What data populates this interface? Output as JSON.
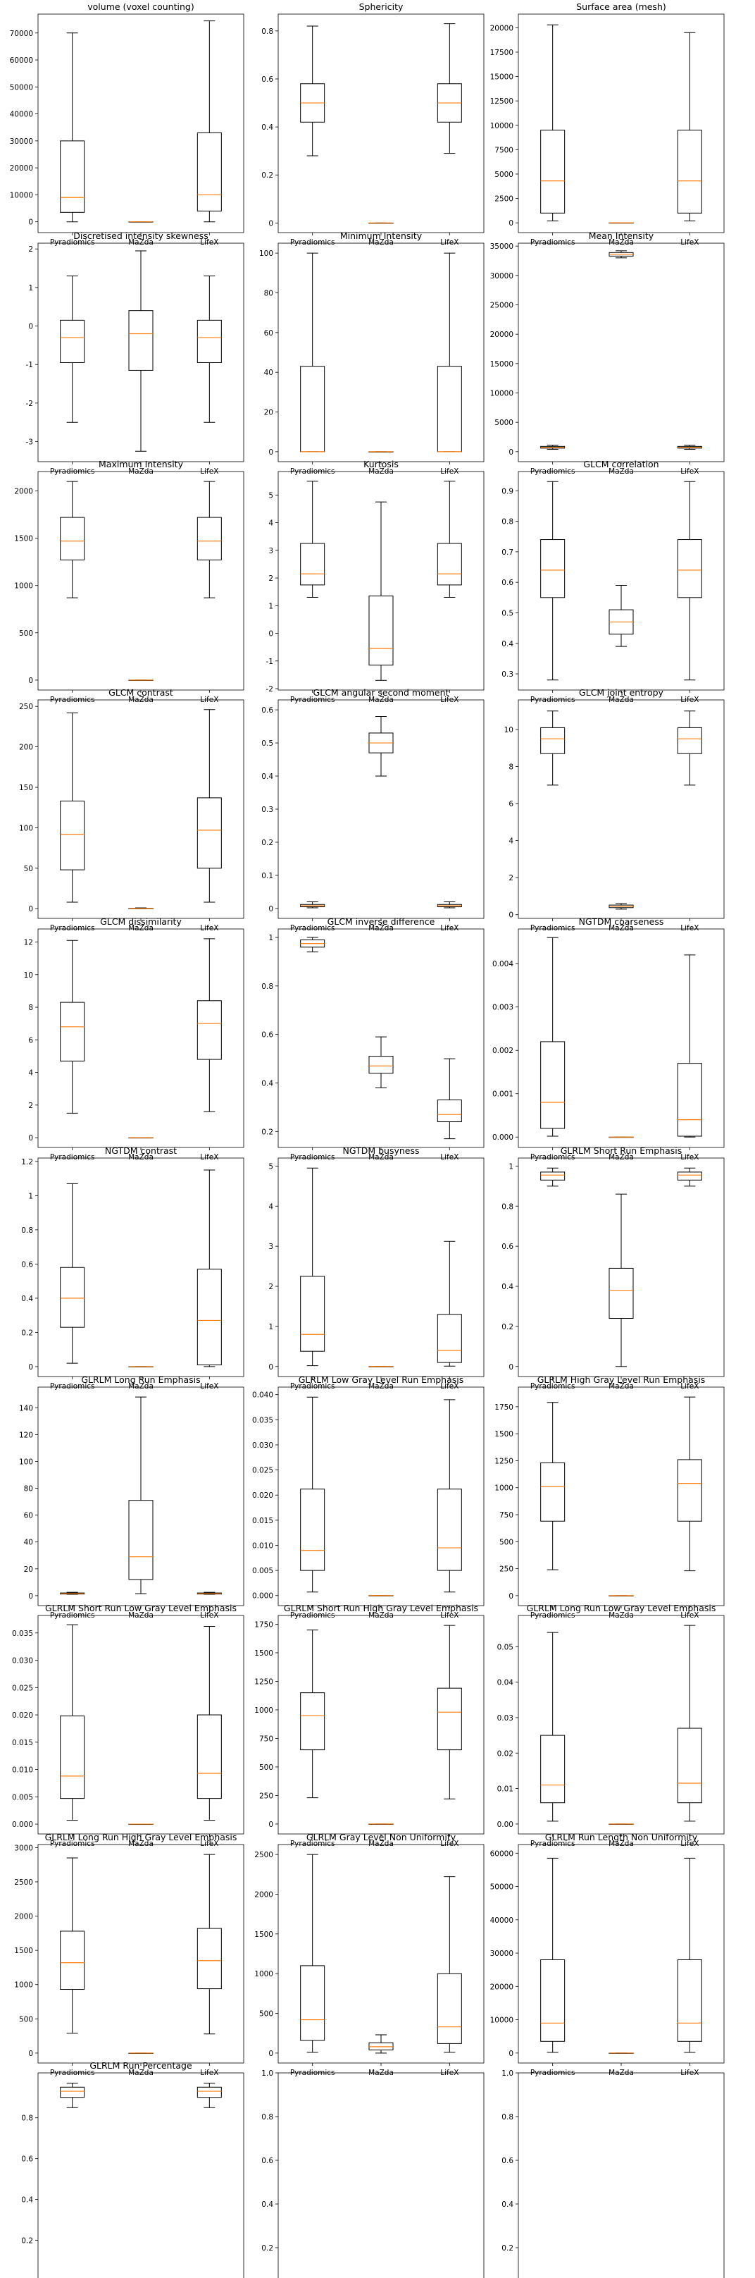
{
  "figure": {
    "categories": [
      "Pyradiomics",
      "MaZda",
      "LifeX"
    ],
    "box_color": "#000000",
    "median_color": "#ff7f0e"
  },
  "chart_data": [
    {
      "type": "box",
      "title": "volume (voxel counting)",
      "ylim": [
        -4000,
        77000
      ],
      "yticks": [
        0,
        10000,
        20000,
        30000,
        40000,
        50000,
        60000,
        70000
      ],
      "boxes": [
        {
          "whislo": 0,
          "q1": 3500,
          "med": 9000,
          "q3": 30000,
          "whishi": 70000
        },
        {
          "whislo": 0,
          "q1": 0,
          "med": 0,
          "q3": 0,
          "whishi": 0
        },
        {
          "whislo": 0,
          "q1": 4000,
          "med": 10000,
          "q3": 33000,
          "whishi": 74500
        }
      ]
    },
    {
      "type": "box",
      "title": "Sphericity",
      "ylim": [
        -0.04,
        0.87
      ],
      "yticks": [
        0.0,
        0.2,
        0.4,
        0.6,
        0.8
      ],
      "boxes": [
        {
          "whislo": 0.28,
          "q1": 0.42,
          "med": 0.5,
          "q3": 0.58,
          "whishi": 0.82
        },
        {
          "whislo": 0,
          "q1": 0,
          "med": 0,
          "q3": 0,
          "whishi": 0
        },
        {
          "whislo": 0.29,
          "q1": 0.42,
          "med": 0.5,
          "q3": 0.58,
          "whishi": 0.83
        }
      ]
    },
    {
      "type": "box",
      "title": "Surface area (mesh)",
      "ylim": [
        -1000,
        21400
      ],
      "yticks": [
        0,
        2500,
        5000,
        7500,
        10000,
        12500,
        15000,
        17500,
        20000
      ],
      "boxes": [
        {
          "whislo": 200,
          "q1": 1000,
          "med": 4300,
          "q3": 9500,
          "whishi": 20300
        },
        {
          "whislo": 0,
          "q1": 0,
          "med": 0,
          "q3": 0,
          "whishi": 0
        },
        {
          "whislo": 200,
          "q1": 1000,
          "med": 4300,
          "q3": 9500,
          "whishi": 19500
        }
      ]
    },
    {
      "type": "box",
      "title": "Discretised intensity skewness",
      "ylim": [
        -3.52,
        2.15
      ],
      "yticks": [
        -3,
        -2,
        -1,
        0,
        1,
        2
      ],
      "boxes": [
        {
          "whislo": -2.5,
          "q1": -0.95,
          "med": -0.3,
          "q3": 0.15,
          "whishi": 1.3
        },
        {
          "whislo": -3.25,
          "q1": -1.15,
          "med": -0.2,
          "q3": 0.4,
          "whishi": 1.95
        },
        {
          "whislo": -2.5,
          "q1": -0.95,
          "med": -0.3,
          "q3": 0.15,
          "whishi": 1.3
        }
      ]
    },
    {
      "type": "box",
      "title": "Minimum Intensity",
      "ylim": [
        -5,
        105
      ],
      "yticks": [
        0,
        20,
        40,
        60,
        80,
        100
      ],
      "boxes": [
        {
          "whislo": 0,
          "q1": 0,
          "med": 0,
          "q3": 43,
          "whishi": 100
        },
        {
          "whislo": 0,
          "q1": 0,
          "med": 0,
          "q3": 0,
          "whishi": 0
        },
        {
          "whislo": 0,
          "q1": 0,
          "med": 0,
          "q3": 43,
          "whishi": 100
        }
      ]
    },
    {
      "type": "box",
      "title": "Mean Intensity",
      "ylim": [
        -1700,
        35500
      ],
      "yticks": [
        0,
        5000,
        10000,
        15000,
        20000,
        25000,
        30000,
        35000
      ],
      "boxes": [
        {
          "whislo": 400,
          "q1": 600,
          "med": 750,
          "q3": 900,
          "whishi": 1100
        },
        {
          "whislo": 33000,
          "q1": 33300,
          "med": 33600,
          "q3": 33900,
          "whishi": 34200
        },
        {
          "whislo": 400,
          "q1": 600,
          "med": 750,
          "q3": 900,
          "whishi": 1100
        }
      ]
    },
    {
      "type": "box",
      "title": "Maximum Intensity",
      "ylim": [
        -105,
        2205
      ],
      "yticks": [
        0,
        500,
        1000,
        1500,
        2000
      ],
      "boxes": [
        {
          "whislo": 870,
          "q1": 1270,
          "med": 1470,
          "q3": 1720,
          "whishi": 2100
        },
        {
          "whislo": 0,
          "q1": 0,
          "med": 0,
          "q3": 0,
          "whishi": 0
        },
        {
          "whislo": 870,
          "q1": 1270,
          "med": 1470,
          "q3": 1720,
          "whishi": 2100
        }
      ]
    },
    {
      "type": "box",
      "title": "Kurtosis",
      "ylim": [
        -2.05,
        5.85
      ],
      "yticks": [
        -2,
        -1,
        0,
        1,
        2,
        3,
        4,
        5
      ],
      "boxes": [
        {
          "whislo": 1.3,
          "q1": 1.75,
          "med": 2.15,
          "q3": 3.25,
          "whishi": 5.5
        },
        {
          "whislo": -1.7,
          "q1": -1.15,
          "med": -0.55,
          "q3": 1.35,
          "whishi": 4.75
        },
        {
          "whislo": 1.3,
          "q1": 1.75,
          "med": 2.15,
          "q3": 3.25,
          "whishi": 5.5
        }
      ]
    },
    {
      "type": "box",
      "title": "GLCM correlation",
      "ylim": [
        0.247,
        0.963
      ],
      "yticks": [
        0.3,
        0.4,
        0.5,
        0.6,
        0.7,
        0.8,
        0.9
      ],
      "boxes": [
        {
          "whislo": 0.28,
          "q1": 0.55,
          "med": 0.64,
          "q3": 0.74,
          "whishi": 0.93
        },
        {
          "whislo": 0.39,
          "q1": 0.43,
          "med": 0.47,
          "q3": 0.51,
          "whishi": 0.59
        },
        {
          "whislo": 0.28,
          "q1": 0.55,
          "med": 0.64,
          "q3": 0.74,
          "whishi": 0.93
        }
      ]
    },
    {
      "type": "box",
      "title": "GLCM contrast",
      "ylim": [
        -12,
        258
      ],
      "yticks": [
        0,
        50,
        100,
        150,
        200,
        250
      ],
      "boxes": [
        {
          "whislo": 8,
          "q1": 48,
          "med": 92,
          "q3": 133,
          "whishi": 242
        },
        {
          "whislo": 0,
          "q1": 0,
          "med": 0.3,
          "q3": 0.6,
          "whishi": 1
        },
        {
          "whislo": 8,
          "q1": 50,
          "med": 97,
          "q3": 137,
          "whishi": 246
        }
      ]
    },
    {
      "type": "box",
      "title": "GLCM angular second moment",
      "ylim": [
        -0.03,
        0.63
      ],
      "yticks": [
        0.0,
        0.1,
        0.2,
        0.3,
        0.4,
        0.5,
        0.6
      ],
      "boxes": [
        {
          "whislo": 0.002,
          "q1": 0.005,
          "med": 0.008,
          "q3": 0.012,
          "whishi": 0.02
        },
        {
          "whislo": 0.4,
          "q1": 0.47,
          "med": 0.5,
          "q3": 0.53,
          "whishi": 0.58
        },
        {
          "whislo": 0.002,
          "q1": 0.005,
          "med": 0.008,
          "q3": 0.012,
          "whishi": 0.02
        }
      ]
    },
    {
      "type": "box",
      "title": "GLCM joint entropy",
      "ylim": [
        -0.2,
        11.6
      ],
      "yticks": [
        0,
        2,
        4,
        6,
        8,
        10
      ],
      "boxes": [
        {
          "whislo": 7.0,
          "q1": 8.7,
          "med": 9.5,
          "q3": 10.1,
          "whishi": 11.0
        },
        {
          "whislo": 0.3,
          "q1": 0.38,
          "med": 0.45,
          "q3": 0.52,
          "whishi": 0.6
        },
        {
          "whislo": 7.0,
          "q1": 8.7,
          "med": 9.5,
          "q3": 10.1,
          "whishi": 11.0
        }
      ]
    },
    {
      "type": "box",
      "title": "GLCM dissimilarity",
      "ylim": [
        -0.6,
        12.8
      ],
      "yticks": [
        0,
        2,
        4,
        6,
        8,
        10,
        12
      ],
      "boxes": [
        {
          "whislo": 1.5,
          "q1": 4.7,
          "med": 6.8,
          "q3": 8.3,
          "whishi": 12.1
        },
        {
          "whislo": 0,
          "q1": 0,
          "med": 0,
          "q3": 0,
          "whishi": 0
        },
        {
          "whislo": 1.6,
          "q1": 4.8,
          "med": 7.0,
          "q3": 8.4,
          "whishi": 12.2
        }
      ]
    },
    {
      "type": "box",
      "title": "GLCM inverse difference",
      "ylim": [
        0.134,
        1.035
      ],
      "yticks": [
        0.2,
        0.4,
        0.6,
        0.8,
        1.0
      ],
      "boxes": [
        {
          "whislo": 0.94,
          "q1": 0.96,
          "med": 0.975,
          "q3": 0.99,
          "whishi": 1.0
        },
        {
          "whislo": 0.38,
          "q1": 0.44,
          "med": 0.47,
          "q3": 0.51,
          "whishi": 0.59
        },
        {
          "whislo": 0.17,
          "q1": 0.24,
          "med": 0.27,
          "q3": 0.33,
          "whishi": 0.5
        }
      ]
    },
    {
      "type": "box",
      "title": "NGTDM coarseness",
      "ylim": [
        -0.00024,
        0.0048
      ],
      "yticks": [
        0.0,
        0.001,
        0.002,
        0.003,
        0.004
      ],
      "tick_decimals": 3,
      "boxes": [
        {
          "whislo": 2e-05,
          "q1": 0.0002,
          "med": 0.0008,
          "q3": 0.0022,
          "whishi": 0.0046
        },
        {
          "whislo": 0,
          "q1": 0,
          "med": 0,
          "q3": 0,
          "whishi": 0
        },
        {
          "whislo": 0.0,
          "q1": 2e-05,
          "med": 0.0004,
          "q3": 0.0017,
          "whishi": 0.0042
        }
      ]
    },
    {
      "type": "box",
      "title": "NGTDM contrast",
      "ylim": [
        -0.058,
        1.22
      ],
      "yticks": [
        0.0,
        0.2,
        0.4,
        0.6,
        0.8,
        1.0,
        1.2
      ],
      "boxes": [
        {
          "whislo": 0.02,
          "q1": 0.23,
          "med": 0.4,
          "q3": 0.58,
          "whishi": 1.07
        },
        {
          "whislo": 0,
          "q1": 0,
          "med": 0,
          "q3": 0,
          "whishi": 0
        },
        {
          "whislo": 0.0,
          "q1": 0.01,
          "med": 0.27,
          "q3": 0.57,
          "whishi": 1.15
        }
      ]
    },
    {
      "type": "box",
      "title": "NGTDM busyness",
      "ylim": [
        -0.25,
        5.2
      ],
      "yticks": [
        0,
        1,
        2,
        3,
        4,
        5
      ],
      "boxes": [
        {
          "whislo": 0.02,
          "q1": 0.38,
          "med": 0.8,
          "q3": 2.25,
          "whishi": 4.95
        },
        {
          "whislo": 0,
          "q1": 0,
          "med": 0,
          "q3": 0,
          "whishi": 0
        },
        {
          "whislo": 0.01,
          "q1": 0.1,
          "med": 0.4,
          "q3": 1.3,
          "whishi": 3.12
        }
      ]
    },
    {
      "type": "box",
      "title": "GLRLM Short Run Emphasis",
      "ylim": [
        -0.05,
        1.04
      ],
      "yticks": [
        0.0,
        0.2,
        0.4,
        0.6,
        0.8,
        1.0
      ],
      "boxes": [
        {
          "whislo": 0.9,
          "q1": 0.93,
          "med": 0.955,
          "q3": 0.97,
          "whishi": 0.99
        },
        {
          "whislo": 0.0,
          "q1": 0.24,
          "med": 0.38,
          "q3": 0.49,
          "whishi": 0.86
        },
        {
          "whislo": 0.9,
          "q1": 0.93,
          "med": 0.955,
          "q3": 0.97,
          "whishi": 0.99
        }
      ]
    },
    {
      "type": "box",
      "title": "GLRLM Long Run Emphasis",
      "ylim": [
        -7.4,
        155.4
      ],
      "yticks": [
        0,
        20,
        40,
        60,
        80,
        100,
        120,
        140
      ],
      "boxes": [
        {
          "whislo": 1.0,
          "q1": 1.2,
          "med": 1.5,
          "q3": 2.0,
          "whishi": 2.5
        },
        {
          "whislo": 1.5,
          "q1": 12,
          "med": 29,
          "q3": 71,
          "whishi": 148
        },
        {
          "whislo": 1.0,
          "q1": 1.2,
          "med": 1.5,
          "q3": 2.0,
          "whishi": 2.5
        }
      ]
    },
    {
      "type": "box",
      "title": "GLRLM Low Gray Level Run Emphasis",
      "ylim": [
        -0.002,
        0.0415
      ],
      "yticks": [
        0.0,
        0.005,
        0.01,
        0.015,
        0.02,
        0.025,
        0.03,
        0.035,
        0.04
      ],
      "tick_decimals": 3,
      "boxes": [
        {
          "whislo": 0.0007,
          "q1": 0.005,
          "med": 0.009,
          "q3": 0.0212,
          "whishi": 0.0395
        },
        {
          "whislo": 0,
          "q1": 0,
          "med": 0,
          "q3": 0,
          "whishi": 0
        },
        {
          "whislo": 0.0007,
          "q1": 0.005,
          "med": 0.0095,
          "q3": 0.0212,
          "whishi": 0.039
        }
      ]
    },
    {
      "type": "box",
      "title": "GLRLM High Gray Level Run Emphasis",
      "ylim": [
        -92,
        1932
      ],
      "yticks": [
        0,
        250,
        500,
        750,
        1000,
        1250,
        1500,
        1750
      ],
      "boxes": [
        {
          "whislo": 240,
          "q1": 690,
          "med": 1010,
          "q3": 1230,
          "whishi": 1790
        },
        {
          "whislo": 0,
          "q1": 0,
          "med": 0,
          "q3": 0,
          "whishi": 0
        },
        {
          "whislo": 230,
          "q1": 690,
          "med": 1040,
          "q3": 1260,
          "whishi": 1840
        }
      ]
    },
    {
      "type": "box",
      "title": "GLRLM Short Run Low Gray Level Emphasis",
      "ylim": [
        -0.0018,
        0.0382
      ],
      "yticks": [
        0.0,
        0.005,
        0.01,
        0.015,
        0.02,
        0.025,
        0.03,
        0.035
      ],
      "tick_decimals": 3,
      "boxes": [
        {
          "whislo": 0.0007,
          "q1": 0.0047,
          "med": 0.0088,
          "q3": 0.0198,
          "whishi": 0.0365
        },
        {
          "whislo": 0,
          "q1": 0,
          "med": 0,
          "q3": 0,
          "whishi": 0
        },
        {
          "whislo": 0.0007,
          "q1": 0.0047,
          "med": 0.0093,
          "q3": 0.02,
          "whishi": 0.0362
        }
      ]
    },
    {
      "type": "box",
      "title": "GLRLM Short Run High Gray Level Emphasis",
      "ylim": [
        -87,
        1827
      ],
      "yticks": [
        0,
        250,
        500,
        750,
        1000,
        1250,
        1500,
        1750
      ],
      "boxes": [
        {
          "whislo": 230,
          "q1": 650,
          "med": 950,
          "q3": 1150,
          "whishi": 1700
        },
        {
          "whislo": 0,
          "q1": 0,
          "med": 0,
          "q3": 0,
          "whishi": 0
        },
        {
          "whislo": 220,
          "q1": 650,
          "med": 980,
          "q3": 1190,
          "whishi": 1740
        }
      ]
    },
    {
      "type": "box",
      "title": "GLRLM Long Run Low Gray Level Emphasis",
      "ylim": [
        -0.0028,
        0.0588
      ],
      "yticks": [
        0.0,
        0.01,
        0.02,
        0.03,
        0.04,
        0.05
      ],
      "tick_decimals": 2,
      "boxes": [
        {
          "whislo": 0.0008,
          "q1": 0.006,
          "med": 0.011,
          "q3": 0.025,
          "whishi": 0.054
        },
        {
          "whislo": 0,
          "q1": 0,
          "med": 0,
          "q3": 0,
          "whishi": 0
        },
        {
          "whislo": 0.0008,
          "q1": 0.006,
          "med": 0.0115,
          "q3": 0.027,
          "whishi": 0.056
        }
      ]
    },
    {
      "type": "box",
      "title": "GLRLM Long Run High Gray Level Emphasis",
      "ylim": [
        -145,
        3045
      ],
      "yticks": [
        0,
        500,
        1000,
        1500,
        2000,
        2500,
        3000
      ],
      "boxes": [
        {
          "whislo": 290,
          "q1": 930,
          "med": 1320,
          "q3": 1780,
          "whishi": 2850
        },
        {
          "whislo": 0,
          "q1": 0,
          "med": 0,
          "q3": 0,
          "whishi": 0
        },
        {
          "whislo": 280,
          "q1": 940,
          "med": 1350,
          "q3": 1820,
          "whishi": 2900
        }
      ]
    },
    {
      "type": "box",
      "title": "GLRLM Gray Level Non Uniformity",
      "ylim": [
        -125,
        2625
      ],
      "yticks": [
        0,
        500,
        1000,
        1500,
        2000,
        2500
      ],
      "boxes": [
        {
          "whislo": 10,
          "q1": 160,
          "med": 420,
          "q3": 1100,
          "whishi": 2500
        },
        {
          "whislo": 0,
          "q1": 40,
          "med": 80,
          "q3": 130,
          "whishi": 230
        },
        {
          "whislo": 10,
          "q1": 120,
          "med": 330,
          "q3": 1000,
          "whishi": 2220
        }
      ]
    },
    {
      "type": "box",
      "title": "GLRLM Run Length Non Uniformity",
      "ylim": [
        -3000,
        62600
      ],
      "yticks": [
        0,
        10000,
        20000,
        30000,
        40000,
        50000,
        60000
      ],
      "boxes": [
        {
          "whislo": 200,
          "q1": 3500,
          "med": 9000,
          "q3": 28000,
          "whishi": 58500
        },
        {
          "whislo": 0,
          "q1": 0,
          "med": 0,
          "q3": 0,
          "whishi": 0
        },
        {
          "whislo": 200,
          "q1": 3500,
          "med": 9000,
          "q3": 28000,
          "whishi": 58500
        }
      ]
    },
    {
      "type": "box",
      "title": "GLRLM Run Percentage",
      "ylim": [
        -0.05,
        1.02
      ],
      "yticks": [
        0.0,
        0.2,
        0.4,
        0.6,
        0.8
      ],
      "boxes": [
        {
          "whislo": 0.85,
          "q1": 0.9,
          "med": 0.93,
          "q3": 0.95,
          "whishi": 0.97
        },
        {
          "whislo": 0,
          "q1": 0,
          "med": 0,
          "q3": 0,
          "whishi": 0
        },
        {
          "whislo": 0.85,
          "q1": 0.9,
          "med": 0.93,
          "q3": 0.95,
          "whishi": 0.97
        }
      ]
    },
    {
      "type": "empty",
      "title": "",
      "xlim": [
        0,
        1
      ],
      "ylim": [
        0,
        1
      ],
      "ticks": [
        "0.0",
        "0.2",
        "0.4",
        "0.6",
        "0.8",
        "1.0"
      ]
    },
    {
      "type": "empty",
      "title": "",
      "xlim": [
        0,
        1
      ],
      "ylim": [
        0,
        1
      ],
      "ticks": [
        "0.0",
        "0.2",
        "0.4",
        "0.6",
        "0.8",
        "1.0"
      ]
    }
  ]
}
